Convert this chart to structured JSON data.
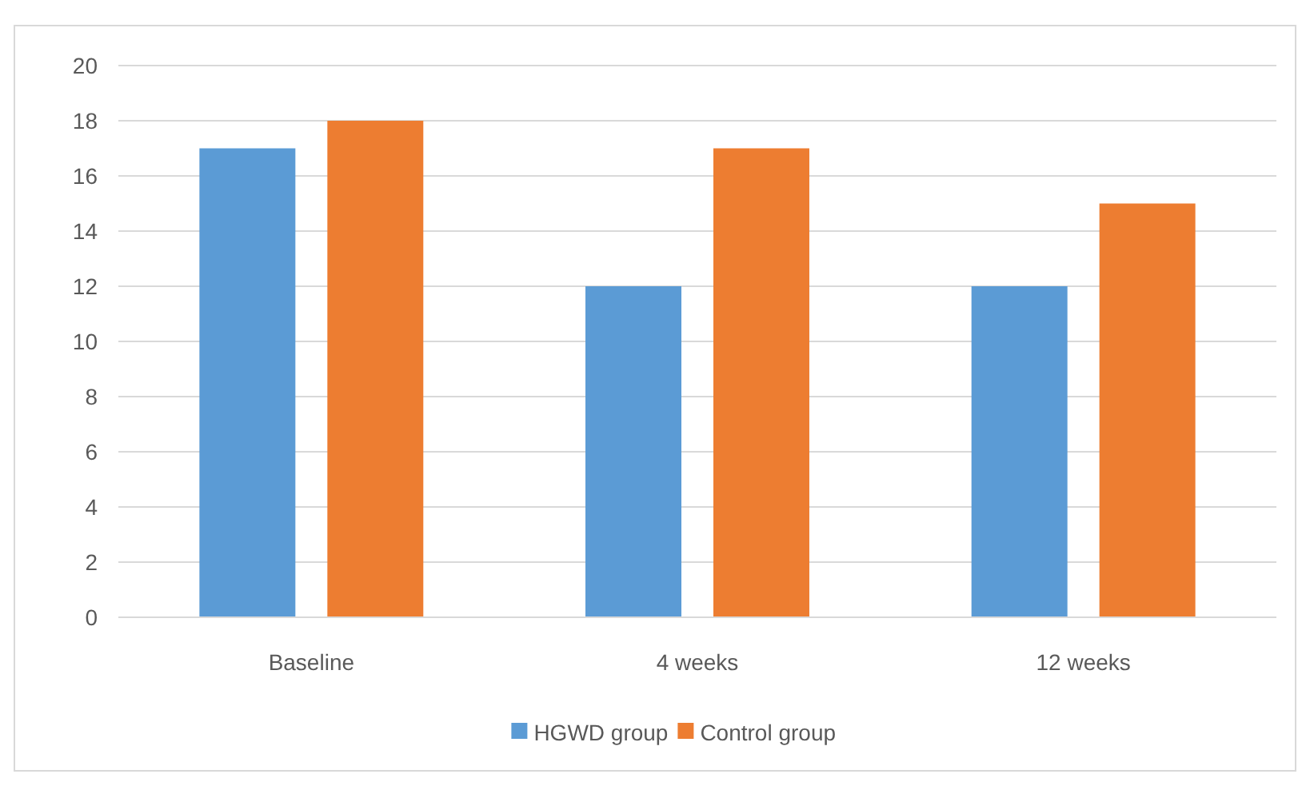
{
  "chart_data": {
    "type": "bar",
    "categories": [
      "Baseline",
      "4 weeks",
      "12 weeks"
    ],
    "series": [
      {
        "name": "HGWD group",
        "color": "#5b9bd5",
        "values": [
          17,
          12,
          12
        ]
      },
      {
        "name": "Control group",
        "color": "#ed7d31",
        "values": [
          18,
          17,
          15
        ]
      }
    ],
    "ylim": [
      0,
      20
    ],
    "yticks": [
      0,
      2,
      4,
      6,
      8,
      10,
      12,
      14,
      16,
      18,
      20
    ],
    "grid": "y",
    "legend": "bottom"
  }
}
